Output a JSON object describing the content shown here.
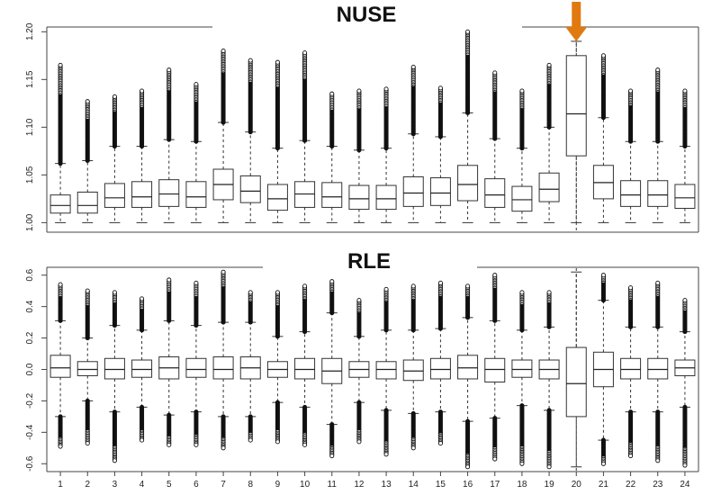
{
  "chart_data": [
    {
      "type": "boxplot",
      "title": "NUSE",
      "categories": [
        "1",
        "2",
        "3",
        "4",
        "5",
        "6",
        "7",
        "8",
        "9",
        "10",
        "11",
        "12",
        "13",
        "14",
        "15",
        "16",
        "17",
        "18",
        "19",
        "20",
        "21",
        "22",
        "23",
        "24"
      ],
      "ylim": [
        0.99,
        1.205
      ],
      "yticks": [
        "1.00",
        "1.05",
        "1.10",
        "1.15",
        "1.20"
      ],
      "highlight_category": "20",
      "arrow_color": "#e07a10",
      "boxes": [
        {
          "q1": 1.01,
          "median": 1.018,
          "q3": 1.029,
          "whisker_low": 1.0,
          "whisker_high": 1.062,
          "outlier_max": 1.165
        },
        {
          "q1": 1.01,
          "median": 1.018,
          "q3": 1.032,
          "whisker_low": 1.0,
          "whisker_high": 1.065,
          "outlier_max": 1.127
        },
        {
          "q1": 1.016,
          "median": 1.026,
          "q3": 1.041,
          "whisker_low": 1.0,
          "whisker_high": 1.08,
          "outlier_max": 1.132
        },
        {
          "q1": 1.016,
          "median": 1.027,
          "q3": 1.043,
          "whisker_low": 1.0,
          "whisker_high": 1.08,
          "outlier_max": 1.138
        },
        {
          "q1": 1.017,
          "median": 1.03,
          "q3": 1.045,
          "whisker_low": 1.0,
          "whisker_high": 1.087,
          "outlier_max": 1.16
        },
        {
          "q1": 1.016,
          "median": 1.027,
          "q3": 1.043,
          "whisker_low": 1.0,
          "whisker_high": 1.085,
          "outlier_max": 1.145
        },
        {
          "q1": 1.024,
          "median": 1.04,
          "q3": 1.056,
          "whisker_low": 1.0,
          "whisker_high": 1.105,
          "outlier_max": 1.18
        },
        {
          "q1": 1.021,
          "median": 1.033,
          "q3": 1.049,
          "whisker_low": 1.0,
          "whisker_high": 1.095,
          "outlier_max": 1.17
        },
        {
          "q1": 1.013,
          "median": 1.025,
          "q3": 1.04,
          "whisker_low": 1.0,
          "whisker_high": 1.078,
          "outlier_max": 1.168
        },
        {
          "q1": 1.016,
          "median": 1.03,
          "q3": 1.043,
          "whisker_low": 1.0,
          "whisker_high": 1.086,
          "outlier_max": 1.178
        },
        {
          "q1": 1.016,
          "median": 1.027,
          "q3": 1.042,
          "whisker_low": 1.0,
          "whisker_high": 1.08,
          "outlier_max": 1.135
        },
        {
          "q1": 1.014,
          "median": 1.025,
          "q3": 1.039,
          "whisker_low": 1.0,
          "whisker_high": 1.076,
          "outlier_max": 1.138
        },
        {
          "q1": 1.014,
          "median": 1.025,
          "q3": 1.039,
          "whisker_low": 1.0,
          "whisker_high": 1.078,
          "outlier_max": 1.14
        },
        {
          "q1": 1.017,
          "median": 1.031,
          "q3": 1.048,
          "whisker_low": 1.0,
          "whisker_high": 1.093,
          "outlier_max": 1.163
        },
        {
          "q1": 1.018,
          "median": 1.031,
          "q3": 1.047,
          "whisker_low": 1.0,
          "whisker_high": 1.09,
          "outlier_max": 1.141
        },
        {
          "q1": 1.023,
          "median": 1.04,
          "q3": 1.06,
          "whisker_low": 1.0,
          "whisker_high": 1.115,
          "outlier_max": 1.2
        },
        {
          "q1": 1.016,
          "median": 1.029,
          "q3": 1.046,
          "whisker_low": 1.0,
          "whisker_high": 1.088,
          "outlier_max": 1.157
        },
        {
          "q1": 1.012,
          "median": 1.024,
          "q3": 1.038,
          "whisker_low": 1.0,
          "whisker_high": 1.078,
          "outlier_max": 1.138
        },
        {
          "q1": 1.022,
          "median": 1.035,
          "q3": 1.052,
          "whisker_low": 1.0,
          "whisker_high": 1.1,
          "outlier_max": 1.165
        },
        {
          "q1": 1.07,
          "median": 1.114,
          "q3": 1.175,
          "whisker_low": 1.0,
          "whisker_high": 1.19,
          "outlier_max": null
        },
        {
          "q1": 1.025,
          "median": 1.042,
          "q3": 1.06,
          "whisker_low": 1.0,
          "whisker_high": 1.11,
          "outlier_max": 1.175
        },
        {
          "q1": 1.017,
          "median": 1.029,
          "q3": 1.044,
          "whisker_low": 1.0,
          "whisker_high": 1.085,
          "outlier_max": 1.138
        },
        {
          "q1": 1.017,
          "median": 1.029,
          "q3": 1.044,
          "whisker_low": 1.0,
          "whisker_high": 1.085,
          "outlier_max": 1.16
        },
        {
          "q1": 1.015,
          "median": 1.026,
          "q3": 1.04,
          "whisker_low": 1.0,
          "whisker_high": 1.08,
          "outlier_max": 1.138
        }
      ]
    },
    {
      "type": "boxplot",
      "title": "RLE",
      "categories": [
        "1",
        "2",
        "3",
        "4",
        "5",
        "6",
        "7",
        "8",
        "9",
        "10",
        "11",
        "12",
        "13",
        "14",
        "15",
        "16",
        "17",
        "18",
        "19",
        "20",
        "21",
        "22",
        "23",
        "24"
      ],
      "xticks": [
        "1",
        "2",
        "3",
        "4",
        "5",
        "6",
        "7",
        "8",
        "9",
        "10",
        "11",
        "12",
        "13",
        "14",
        "15",
        "16",
        "17",
        "18",
        "19",
        "20",
        "21",
        "22",
        "23",
        "24"
      ],
      "ylim": [
        -0.65,
        0.65
      ],
      "yticks": [
        "-0.6",
        "-0.4",
        "-0.2",
        "0.0",
        "0.2",
        "0.4",
        "0.6"
      ],
      "highlight_category": "20",
      "boxes": [
        {
          "q1": -0.05,
          "median": 0.01,
          "q3": 0.09,
          "whisker_low": -0.3,
          "whisker_high": 0.31,
          "outlier_low": -0.49,
          "outlier_high": 0.54
        },
        {
          "q1": -0.04,
          "median": 0.0,
          "q3": 0.05,
          "whisker_low": -0.2,
          "whisker_high": 0.2,
          "outlier_low": -0.47,
          "outlier_high": 0.5
        },
        {
          "q1": -0.06,
          "median": 0.0,
          "q3": 0.07,
          "whisker_low": -0.27,
          "whisker_high": 0.28,
          "outlier_low": -0.58,
          "outlier_high": 0.49
        },
        {
          "q1": -0.05,
          "median": 0.0,
          "q3": 0.06,
          "whisker_low": -0.24,
          "whisker_high": 0.25,
          "outlier_low": -0.45,
          "outlier_high": 0.45
        },
        {
          "q1": -0.06,
          "median": 0.01,
          "q3": 0.08,
          "whisker_low": -0.29,
          "whisker_high": 0.31,
          "outlier_low": -0.48,
          "outlier_high": 0.57
        },
        {
          "q1": -0.05,
          "median": 0.0,
          "q3": 0.07,
          "whisker_low": -0.27,
          "whisker_high": 0.28,
          "outlier_low": -0.48,
          "outlier_high": 0.55
        },
        {
          "q1": -0.06,
          "median": 0.0,
          "q3": 0.08,
          "whisker_low": -0.3,
          "whisker_high": 0.3,
          "outlier_low": -0.5,
          "outlier_high": 0.62
        },
        {
          "q1": -0.06,
          "median": 0.01,
          "q3": 0.08,
          "whisker_low": -0.3,
          "whisker_high": 0.3,
          "outlier_low": -0.45,
          "outlier_high": 0.49
        },
        {
          "q1": -0.05,
          "median": 0.0,
          "q3": 0.05,
          "whisker_low": -0.21,
          "whisker_high": 0.21,
          "outlier_low": -0.46,
          "outlier_high": 0.49
        },
        {
          "q1": -0.06,
          "median": 0.0,
          "q3": 0.07,
          "whisker_low": -0.24,
          "whisker_high": 0.24,
          "outlier_low": -0.48,
          "outlier_high": 0.53
        },
        {
          "q1": -0.09,
          "median": -0.01,
          "q3": 0.07,
          "whisker_low": -0.35,
          "whisker_high": 0.36,
          "outlier_low": -0.55,
          "outlier_high": 0.56
        },
        {
          "q1": -0.05,
          "median": 0.0,
          "q3": 0.05,
          "whisker_low": -0.21,
          "whisker_high": 0.21,
          "outlier_low": -0.46,
          "outlier_high": 0.44
        },
        {
          "q1": -0.06,
          "median": 0.0,
          "q3": 0.05,
          "whisker_low": -0.26,
          "whisker_high": 0.25,
          "outlier_low": -0.54,
          "outlier_high": 0.51
        },
        {
          "q1": -0.07,
          "median": -0.01,
          "q3": 0.06,
          "whisker_low": -0.28,
          "whisker_high": 0.25,
          "outlier_low": -0.5,
          "outlier_high": 0.53
        },
        {
          "q1": -0.06,
          "median": 0.0,
          "q3": 0.07,
          "whisker_low": -0.27,
          "whisker_high": 0.26,
          "outlier_low": -0.47,
          "outlier_high": 0.55
        },
        {
          "q1": -0.06,
          "median": 0.01,
          "q3": 0.09,
          "whisker_low": -0.33,
          "whisker_high": 0.33,
          "outlier_low": -0.62,
          "outlier_high": 0.53
        },
        {
          "q1": -0.08,
          "median": 0.0,
          "q3": 0.07,
          "whisker_low": -0.31,
          "whisker_high": 0.31,
          "outlier_low": -0.57,
          "outlier_high": 0.6
        },
        {
          "q1": -0.05,
          "median": 0.0,
          "q3": 0.06,
          "whisker_low": -0.23,
          "whisker_high": 0.25,
          "outlier_low": -0.6,
          "outlier_high": 0.49
        },
        {
          "q1": -0.06,
          "median": 0.0,
          "q3": 0.06,
          "whisker_low": -0.26,
          "whisker_high": 0.27,
          "outlier_low": -0.62,
          "outlier_high": 0.49
        },
        {
          "q1": -0.3,
          "median": -0.09,
          "q3": 0.14,
          "whisker_low": -0.62,
          "whisker_high": 0.62,
          "outlier_low": null,
          "outlier_high": null
        },
        {
          "q1": -0.11,
          "median": 0.0,
          "q3": 0.11,
          "whisker_low": -0.45,
          "whisker_high": 0.44,
          "outlier_low": -0.6,
          "outlier_high": 0.6
        },
        {
          "q1": -0.06,
          "median": 0.0,
          "q3": 0.07,
          "whisker_low": -0.27,
          "whisker_high": 0.27,
          "outlier_low": -0.55,
          "outlier_high": 0.52
        },
        {
          "q1": -0.06,
          "median": 0.0,
          "q3": 0.07,
          "whisker_low": -0.27,
          "whisker_high": 0.27,
          "outlier_low": -0.58,
          "outlier_high": 0.55
        },
        {
          "q1": -0.04,
          "median": 0.01,
          "q3": 0.06,
          "whisker_low": -0.24,
          "whisker_high": 0.24,
          "outlier_low": -0.61,
          "outlier_high": 0.44
        }
      ]
    }
  ]
}
